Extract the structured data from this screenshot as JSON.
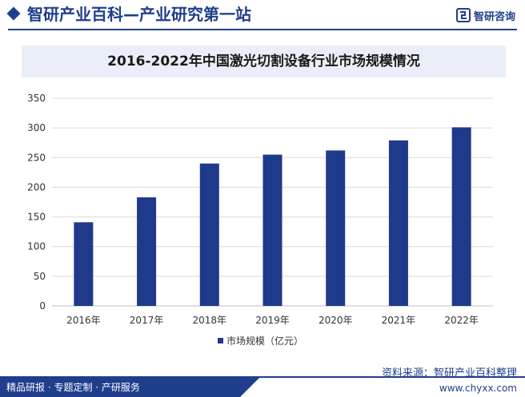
{
  "header": {
    "site_title": "智研产业百科—产业研究第一站",
    "logo_text": "智研咨询"
  },
  "chart_data": {
    "type": "bar",
    "title": "2016-2022年中国激光切割设备行业市场规模情况",
    "categories": [
      "2016年",
      "2017年",
      "2018年",
      "2019年",
      "2020年",
      "2021年",
      "2022年"
    ],
    "series": [
      {
        "name": "市场规模（亿元）",
        "values": [
          141,
          183,
          240,
          255,
          262,
          279,
          301
        ]
      }
    ],
    "ylim": [
      0,
      350
    ],
    "yticks": [
      0,
      50,
      100,
      150,
      200,
      250,
      300,
      350
    ],
    "grid": true,
    "legend": "bottom",
    "colors": {
      "bar": "#1f3a8a",
      "grid": "#d9d9d9"
    }
  },
  "footer": {
    "tagline": "精品研报 · 专题定制 · 产研服务",
    "source": "资料来源：智研产业百科整理",
    "url": "www.chyxx.com"
  }
}
